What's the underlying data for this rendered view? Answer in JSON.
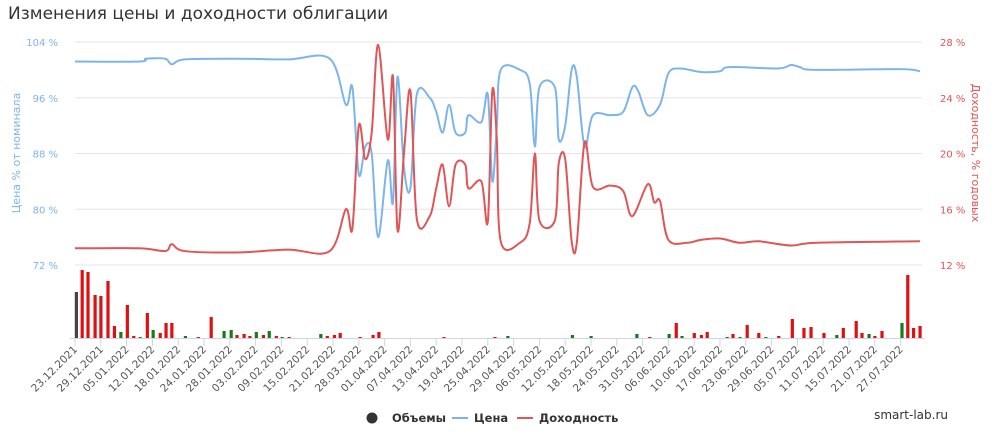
{
  "chart_data": {
    "type": "line",
    "title": "Изменения цены и доходности облигации",
    "y_left": {
      "label": "Цена % от номинала",
      "ticks": [
        "104 %",
        "96 %",
        "88 %",
        "80 %",
        "72 %"
      ],
      "range": [
        72,
        104
      ]
    },
    "y_right": {
      "label": "Доходность, % годовых",
      "ticks": [
        "28 %",
        "24 %",
        "20 %",
        "16 %",
        "12 %"
      ],
      "range": [
        12,
        28
      ]
    },
    "x_ticks": [
      "23.12.2021",
      "29.12.2021",
      "05.01.2022",
      "12.01.2022",
      "18.01.2022",
      "24.01.2022",
      "28.01.2022",
      "03.02.2022",
      "09.02.2022",
      "15.02.2022",
      "21.02.2022",
      "28.03.2022",
      "01.04.2022",
      "07.04.2022",
      "13.04.2022",
      "19.04.2022",
      "25.04.2022",
      "29.04.2022",
      "06.05.2022",
      "12.05.2022",
      "18.05.2022",
      "24.05.2022",
      "31.05.2022",
      "06.06.2022",
      "10.06.2022",
      "17.06.2022",
      "23.06.2022",
      "29.06.2022",
      "05.07.2022",
      "11.07.2022",
      "15.07.2022",
      "21.07.2022",
      "27.07.2022"
    ],
    "grid": true,
    "legend": {
      "placement": "bottom",
      "items": [
        {
          "name": "Объемы",
          "color": "#333333"
        },
        {
          "name": "Цена",
          "color": "#7cb5ec"
        },
        {
          "name": "Доходность",
          "color": "#e05555"
        }
      ]
    },
    "series": [
      {
        "name": "Цена",
        "axis": "left",
        "color": "#7cb5ec",
        "points": [
          [
            0,
            101.2
          ],
          [
            10,
            101.2
          ],
          [
            11,
            101.6
          ],
          [
            14,
            101.6
          ],
          [
            15,
            100.8
          ],
          [
            17,
            101.5
          ],
          [
            25,
            101.6
          ],
          [
            33,
            101.5
          ],
          [
            39.5,
            101.6
          ],
          [
            42,
            95
          ],
          [
            43,
            97.5
          ],
          [
            44,
            85
          ],
          [
            45,
            89
          ],
          [
            46,
            88
          ],
          [
            47,
            76
          ],
          [
            48.5,
            87
          ],
          [
            49.3,
            81
          ],
          [
            50,
            99
          ],
          [
            51,
            86
          ],
          [
            52,
            83
          ],
          [
            53,
            96.5
          ],
          [
            55,
            96
          ],
          [
            56,
            94
          ],
          [
            57,
            91
          ],
          [
            58,
            95
          ],
          [
            59,
            91
          ],
          [
            60.5,
            91
          ],
          [
            61,
            93.5
          ],
          [
            63,
            92.5
          ],
          [
            64,
            96.5
          ],
          [
            64.7,
            84
          ],
          [
            65.4,
            92
          ],
          [
            66,
            100
          ],
          [
            69,
            100
          ],
          [
            70.5,
            98
          ],
          [
            71.3,
            89
          ],
          [
            72,
            97.5
          ],
          [
            74.4,
            97.5
          ],
          [
            75,
            90
          ],
          [
            76,
            92
          ],
          [
            77,
            100
          ],
          [
            77.8,
            99
          ],
          [
            79,
            89
          ],
          [
            80.3,
            93.5
          ],
          [
            83,
            93.5
          ],
          [
            85,
            94
          ],
          [
            86.4,
            97.5
          ],
          [
            87.3,
            97
          ],
          [
            88.8,
            93.5
          ],
          [
            90.7,
            95
          ],
          [
            92,
            99.5
          ],
          [
            93.8,
            100.2
          ],
          [
            97,
            99.7
          ],
          [
            100,
            99.8
          ],
          [
            101.5,
            100.4
          ],
          [
            109,
            100.2
          ],
          [
            111,
            100.7
          ],
          [
            112.4,
            100.4
          ],
          [
            114.7,
            100
          ],
          [
            128,
            100.1
          ],
          [
            131,
            99.8
          ]
        ]
      },
      {
        "name": "Доходность",
        "axis": "right",
        "color": "#e05555",
        "points": [
          [
            0,
            13.2
          ],
          [
            10,
            13.2
          ],
          [
            14,
            13.0
          ],
          [
            15,
            13.5
          ],
          [
            17,
            13.0
          ],
          [
            25,
            12.9
          ],
          [
            33,
            13.1
          ],
          [
            39.5,
            13.0
          ],
          [
            42,
            16
          ],
          [
            43,
            14.6
          ],
          [
            44,
            22
          ],
          [
            45,
            19.6
          ],
          [
            46,
            21.5
          ],
          [
            47,
            27.8
          ],
          [
            48.5,
            21
          ],
          [
            49.3,
            25.5
          ],
          [
            50,
            14.5
          ],
          [
            51,
            20
          ],
          [
            52,
            24.5
          ],
          [
            53,
            15.3
          ],
          [
            55,
            15.5
          ],
          [
            56,
            17.5
          ],
          [
            57,
            19.2
          ],
          [
            58,
            16.2
          ],
          [
            59,
            19.2
          ],
          [
            60.5,
            19.2
          ],
          [
            61,
            17.5
          ],
          [
            63,
            18
          ],
          [
            64,
            15.1
          ],
          [
            64.7,
            24.5
          ],
          [
            65.4,
            21
          ],
          [
            66,
            13.7
          ],
          [
            69,
            13.6
          ],
          [
            70.5,
            15
          ],
          [
            71.3,
            20
          ],
          [
            72,
            15.2
          ],
          [
            74.4,
            15.2
          ],
          [
            75,
            19.3
          ],
          [
            76,
            19.6
          ],
          [
            77,
            13.7
          ],
          [
            77.8,
            13.6
          ],
          [
            79,
            20.8
          ],
          [
            80.3,
            17.6
          ],
          [
            83,
            17.7
          ],
          [
            85,
            17.3
          ],
          [
            86.4,
            15.5
          ],
          [
            88.8,
            17.8
          ],
          [
            89.8,
            16.5
          ],
          [
            90.7,
            16.6
          ],
          [
            92,
            13.8
          ],
          [
            95,
            13.6
          ],
          [
            97,
            13.8
          ],
          [
            100,
            13.9
          ],
          [
            103,
            13.6
          ],
          [
            106,
            13.7
          ],
          [
            111,
            13.4
          ],
          [
            115,
            13.6
          ],
          [
            131,
            13.7
          ]
        ]
      },
      {
        "name": "Объемы",
        "type": "bar",
        "colors": {
          "first": "#444444",
          "up": "#1a7a1a",
          "down": "#dd1111"
        },
        "bars": [
          [
            0.2,
            46,
            "first"
          ],
          [
            1.1,
            68,
            "down"
          ],
          [
            2,
            66,
            "down"
          ],
          [
            3.1,
            43,
            "down"
          ],
          [
            4,
            42,
            "down"
          ],
          [
            5.1,
            57,
            "down"
          ],
          [
            6.1,
            12,
            "down"
          ],
          [
            7.1,
            6,
            "up"
          ],
          [
            8.1,
            33,
            "down"
          ],
          [
            9.1,
            2,
            "down"
          ],
          [
            10.1,
            1,
            "up"
          ],
          [
            11.2,
            25,
            "down"
          ],
          [
            12.1,
            8,
            "up"
          ],
          [
            13.2,
            5,
            "down"
          ],
          [
            14.1,
            15,
            "down"
          ],
          [
            15,
            15,
            "down"
          ],
          [
            17.1,
            2,
            "up"
          ],
          [
            19.1,
            1,
            "down"
          ],
          [
            21.1,
            21,
            "down"
          ],
          [
            23.1,
            7,
            "up"
          ],
          [
            24.2,
            8,
            "up"
          ],
          [
            25.1,
            3,
            "down"
          ],
          [
            26.2,
            4,
            "down"
          ],
          [
            27.1,
            2,
            "down"
          ],
          [
            28.1,
            6,
            "up"
          ],
          [
            29.2,
            3,
            "down"
          ],
          [
            30.1,
            7,
            "up"
          ],
          [
            31.2,
            2,
            "down"
          ],
          [
            32.1,
            1,
            "up"
          ],
          [
            33.2,
            1,
            "down"
          ],
          [
            38.1,
            4,
            "up"
          ],
          [
            39.1,
            2,
            "down"
          ],
          [
            40.2,
            3,
            "down"
          ],
          [
            41.1,
            5,
            "down"
          ],
          [
            44.2,
            1,
            "down"
          ],
          [
            46.2,
            3,
            "down"
          ],
          [
            47.1,
            6,
            "down"
          ],
          [
            57.2,
            1,
            "down"
          ],
          [
            65.1,
            1,
            "down"
          ],
          [
            67.1,
            2,
            "up"
          ],
          [
            77.1,
            3,
            "up"
          ],
          [
            80,
            2,
            "up"
          ],
          [
            87.1,
            4,
            "up"
          ],
          [
            89.1,
            1,
            "down"
          ],
          [
            92.1,
            4,
            "up"
          ],
          [
            93.2,
            15,
            "down"
          ],
          [
            94.1,
            2,
            "up"
          ],
          [
            96,
            5,
            "down"
          ],
          [
            97.1,
            3,
            "down"
          ],
          [
            98,
            6,
            "down"
          ],
          [
            101.1,
            1,
            "up"
          ],
          [
            102,
            4,
            "down"
          ],
          [
            103.1,
            1,
            "up"
          ],
          [
            104.2,
            13,
            "down"
          ],
          [
            106,
            5,
            "down"
          ],
          [
            107.1,
            1,
            "up"
          ],
          [
            109.1,
            2,
            "down"
          ],
          [
            111.2,
            19,
            "down"
          ],
          [
            113,
            10,
            "down"
          ],
          [
            114.1,
            11,
            "down"
          ],
          [
            116.1,
            5,
            "down"
          ],
          [
            118.1,
            3,
            "up"
          ],
          [
            119.1,
            10,
            "down"
          ],
          [
            121.1,
            17,
            "down"
          ],
          [
            122,
            5,
            "down"
          ],
          [
            123.1,
            4,
            "up"
          ],
          [
            124,
            2,
            "down"
          ],
          [
            125.1,
            7,
            "down"
          ],
          [
            128.2,
            15,
            "up"
          ],
          [
            129.1,
            63,
            "down"
          ],
          [
            130,
            10,
            "down"
          ],
          [
            131,
            12,
            "down"
          ]
        ]
      }
    ]
  },
  "watermark": "smart-lab.ru"
}
